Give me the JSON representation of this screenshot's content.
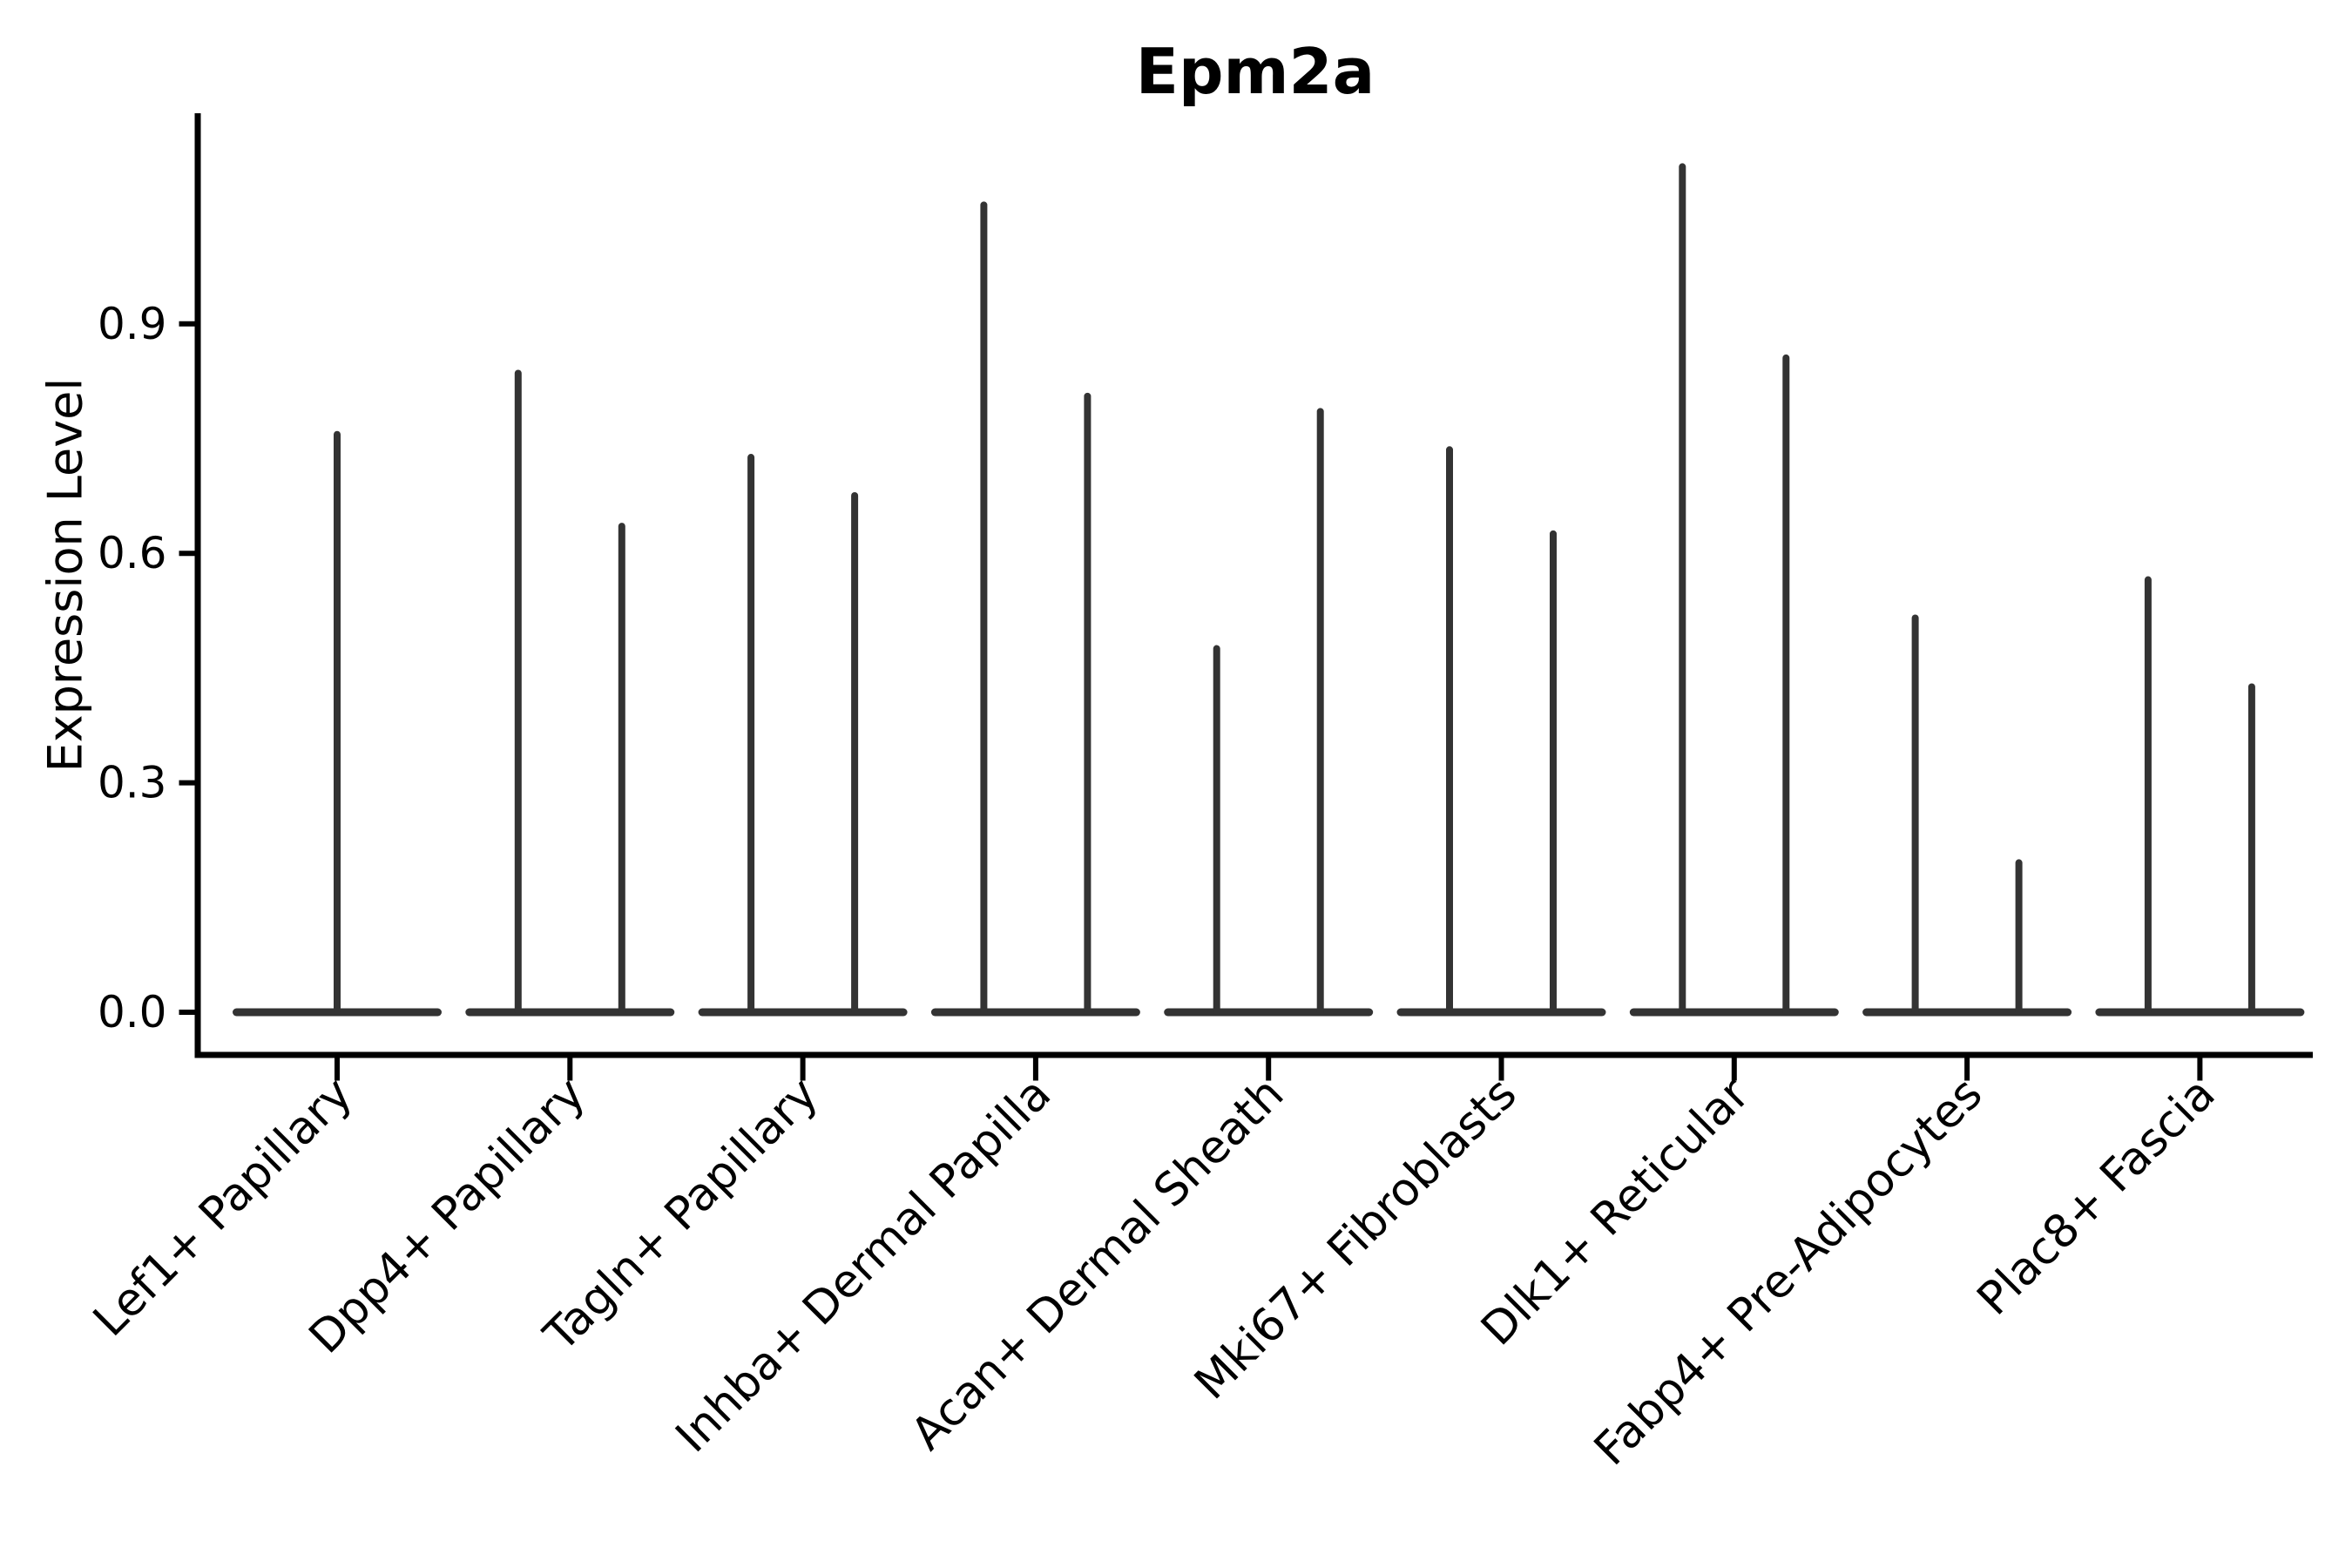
{
  "chart_data": {
    "type": "violin",
    "title": "Epm2a",
    "xlabel": "",
    "ylabel": "Expression Level",
    "yticks": [
      {
        "label": "0.0",
        "value": 0.0
      },
      {
        "label": "0.3",
        "value": 0.3
      },
      {
        "label": "0.6",
        "value": 0.6
      },
      {
        "label": "0.9",
        "value": 0.9
      }
    ],
    "ylim": [
      -0.056,
      1.175
    ],
    "grid": false,
    "legend": "none",
    "axis_color": "#000000",
    "violin_color": "#333333",
    "background_color": "#ffffff",
    "categories": [
      "Lef1+ Papillary",
      "Dpp4+ Papillary",
      "Tagln+ Papillary",
      "Inhba+ Dermal Papilla",
      "Acan+ Dermal Sheath",
      "Mki67+ Fibroblasts",
      "Dlk1+ Reticular",
      "Fabp4+ Pre-Adipocytes",
      "Plac8+ Fascia"
    ],
    "violins": [
      {
        "category": "Lef1+ Papillary",
        "spike_maxima": [
          0.76
        ]
      },
      {
        "category": "Dpp4+ Papillary",
        "spike_maxima": [
          0.84,
          0.64
        ]
      },
      {
        "category": "Tagln+ Papillary",
        "spike_maxima": [
          0.73,
          0.68
        ]
      },
      {
        "category": "Inhba+ Dermal Papilla",
        "spike_maxima": [
          1.06,
          0.81
        ]
      },
      {
        "category": "Acan+ Dermal Sheath",
        "spike_maxima": [
          0.48,
          0.79
        ]
      },
      {
        "category": "Mki67+ Fibroblasts",
        "spike_maxima": [
          0.74,
          0.63
        ]
      },
      {
        "category": "Dlk1+ Reticular",
        "spike_maxima": [
          1.11,
          0.86
        ]
      },
      {
        "category": "Fabp4+ Pre-Adipocytes",
        "spike_maxima": [
          0.52,
          0.2
        ]
      },
      {
        "category": "Plac8+ Fascia",
        "spike_maxima": [
          0.57,
          0.43
        ]
      }
    ],
    "shape_note": "Each violin is almost entirely density at 0 (wide flat base bar) with a hair-thin spike rising to the group maximum."
  }
}
